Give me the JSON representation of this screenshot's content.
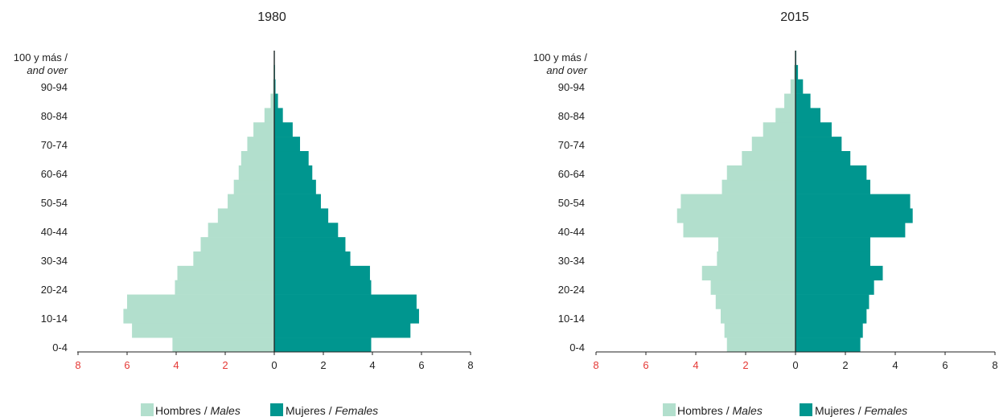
{
  "colors": {
    "males": "#b2dfcd",
    "females": "#00968f",
    "neg_tick": "#e53935",
    "pos_tick": "#222222",
    "axis": "#222222"
  },
  "age_labels": [
    "0-4",
    "10-14",
    "20-24",
    "30-34",
    "40-44",
    "50-54",
    "60-64",
    "70-74",
    "80-84",
    "90-94"
  ],
  "age_top_label": {
    "line1": "100 y más /",
    "line2": "and over"
  },
  "ticks": {
    "negative": [
      "8",
      "6",
      "4",
      "2"
    ],
    "zero": "0",
    "positive": [
      "2",
      "4",
      "6",
      "8"
    ]
  },
  "legend": {
    "males_es": "Hombres",
    "males_en": "Males",
    "females_es": "Mujeres",
    "females_en": "Females",
    "sep": "/"
  },
  "chart_data": [
    {
      "type": "bar",
      "orientation": "horizontal-pyramid",
      "title": "1980",
      "categories": [
        "0-4",
        "5-9",
        "10-14",
        "15-19",
        "20-24",
        "25-29",
        "30-34",
        "35-39",
        "40-44",
        "45-49",
        "50-54",
        "55-59",
        "60-64",
        "65-69",
        "70-74",
        "75-79",
        "80-84",
        "85-89",
        "90-94",
        "95-99",
        "100 y más / and over"
      ],
      "xlim": [
        -8,
        8
      ],
      "series": [
        {
          "name": "Hombres / Males",
          "values": [
            4.15,
            5.8,
            6.15,
            6.0,
            4.05,
            3.95,
            3.3,
            3.0,
            2.7,
            2.3,
            1.9,
            1.65,
            1.45,
            1.35,
            1.1,
            0.85,
            0.4,
            0.15,
            0.05,
            0.03,
            0.02
          ]
        },
        {
          "name": "Mujeres / Females",
          "values": [
            3.95,
            5.55,
            5.9,
            5.8,
            3.95,
            3.9,
            3.1,
            2.9,
            2.6,
            2.2,
            1.9,
            1.7,
            1.55,
            1.4,
            1.05,
            0.75,
            0.35,
            0.15,
            0.05,
            0.03,
            0.02
          ]
        }
      ]
    },
    {
      "type": "bar",
      "orientation": "horizontal-pyramid",
      "title": "2015",
      "categories": [
        "0-4",
        "5-9",
        "10-14",
        "15-19",
        "20-24",
        "25-29",
        "30-34",
        "35-39",
        "40-44",
        "45-49",
        "50-54",
        "55-59",
        "60-64",
        "65-69",
        "70-74",
        "75-79",
        "80-84",
        "85-89",
        "90-94",
        "95-99",
        "100 y más / and over"
      ],
      "xlim": [
        -8,
        8
      ],
      "series": [
        {
          "name": "Hombres / Males",
          "values": [
            2.75,
            2.85,
            3.0,
            3.2,
            3.4,
            3.75,
            3.15,
            3.1,
            4.5,
            4.75,
            4.6,
            2.95,
            2.75,
            2.15,
            1.75,
            1.3,
            0.8,
            0.45,
            0.2,
            0.06,
            0.02
          ]
        },
        {
          "name": "Mujeres / Females",
          "values": [
            2.6,
            2.7,
            2.85,
            2.95,
            3.15,
            3.5,
            3.0,
            3.0,
            4.4,
            4.7,
            4.6,
            3.0,
            2.85,
            2.2,
            1.85,
            1.45,
            1.0,
            0.6,
            0.3,
            0.1,
            0.03
          ]
        }
      ]
    }
  ]
}
